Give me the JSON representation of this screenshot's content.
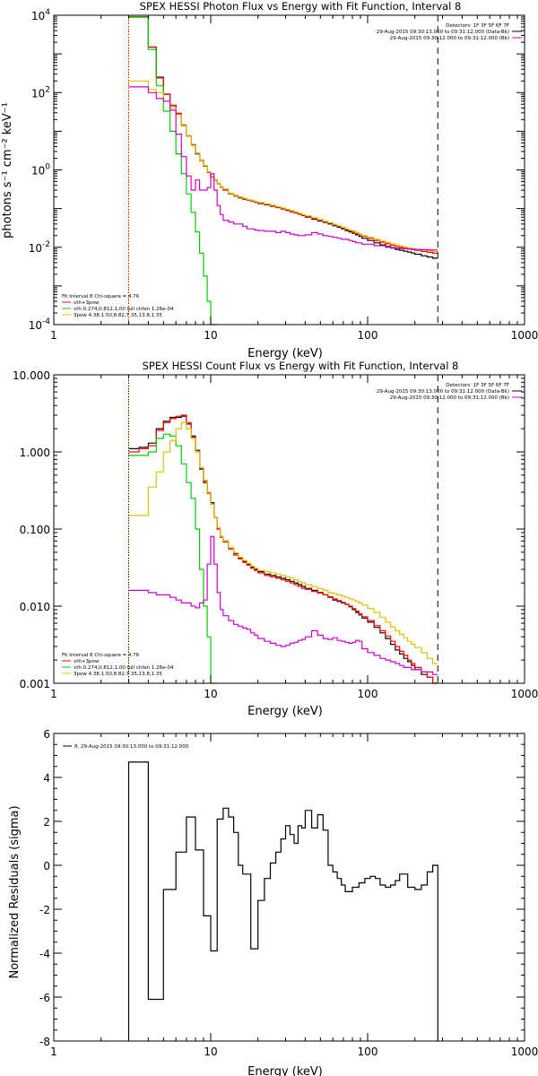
{
  "chart_data": [
    {
      "type": "line",
      "title": "SPEX HESSI Photon Flux vs Energy with Fit Function, Interval 8",
      "xlabel": "Energy (keV)",
      "ylabel": "photons s⁻¹ cm⁻² keV⁻¹",
      "xscale": "log",
      "yscale": "log",
      "xlim": [
        1,
        1000
      ],
      "ylim": [
        0.0001,
        10000
      ],
      "xticks": [
        "1",
        "10",
        "100",
        "1000"
      ],
      "yticks": [
        {
          "v": 0.0001,
          "m": "10",
          "e": "-4"
        },
        {
          "v": 0.01,
          "m": "10",
          "e": "-2"
        },
        {
          "v": 1,
          "m": "10",
          "e": "0"
        },
        {
          "v": 100,
          "m": "10",
          "e": "2"
        },
        {
          "v": 10000,
          "m": "10",
          "e": "4"
        }
      ],
      "edges": [
        3,
        3.5,
        4,
        4.5,
        5,
        5.5,
        6,
        6.5,
        7,
        7.5,
        8,
        8.5,
        9,
        9.5,
        10,
        10.5,
        11,
        11.5,
        12,
        13,
        14,
        15,
        16,
        17,
        18,
        19,
        20,
        22,
        24,
        26,
        28,
        30,
        32,
        34,
        36,
        38,
        40,
        44,
        48,
        52,
        56,
        60,
        64,
        68,
        72,
        76,
        80,
        84,
        88,
        92,
        100,
        110,
        120,
        130,
        140,
        150,
        160,
        170,
        180,
        190,
        200,
        220,
        240,
        260,
        280
      ],
      "vlines": [
        {
          "x": 3,
          "color": "#d4a017",
          "dash": "2,2"
        },
        {
          "x": 3,
          "color": "#ff0000",
          "dash": "1,2"
        },
        {
          "x": 280,
          "color": "#000000",
          "dash": "7,5"
        }
      ],
      "series": [
        {
          "name": "",
          "color": "#000000",
          "values": [
            9000,
            9000,
            1500,
            250,
            90,
            46,
            28,
            14,
            7.5,
            4.4,
            2.6,
            1.8,
            1.25,
            0.88,
            0.66,
            0.55,
            0.44,
            0.36,
            0.31,
            0.24,
            0.21,
            0.19,
            0.175,
            0.165,
            0.155,
            0.145,
            0.135,
            0.125,
            0.115,
            0.106,
            0.098,
            0.09,
            0.083,
            0.077,
            0.071,
            0.066,
            0.06,
            0.053,
            0.048,
            0.044,
            0.04,
            0.036,
            0.033,
            0.03,
            0.027,
            0.025,
            0.023,
            0.021,
            0.019,
            0.017,
            0.015,
            0.013,
            0.0115,
            0.0104,
            0.0095,
            0.0088,
            0.0083,
            0.0079,
            0.0075,
            0.0071,
            0.0066,
            0.006,
            0.0056,
            0.0052
          ]
        },
        {
          "name": "vth+3pow",
          "color": "#ff0000",
          "values": [
            9200,
            9200,
            1500,
            240,
            92,
            47,
            29,
            14.5,
            7.6,
            4.5,
            2.7,
            1.75,
            1.28,
            0.86,
            0.65,
            0.54,
            0.45,
            0.37,
            0.3,
            0.245,
            0.215,
            0.195,
            0.18,
            0.168,
            0.157,
            0.148,
            0.139,
            0.128,
            0.118,
            0.108,
            0.1,
            0.092,
            0.085,
            0.078,
            0.072,
            0.067,
            0.062,
            0.055,
            0.05,
            0.046,
            0.042,
            0.038,
            0.035,
            0.032,
            0.029,
            0.027,
            0.025,
            0.023,
            0.021,
            0.019,
            0.017,
            0.015,
            0.0135,
            0.0123,
            0.0113,
            0.0105,
            0.0099,
            0.0094,
            0.009,
            0.0087,
            0.0083,
            0.0078,
            0.0074,
            0.007
          ]
        },
        {
          "name": "vth 0.274,0.812,1.00 full chfan 1.26e-04",
          "color": "#00cc00",
          "values": [
            9000,
            9000,
            1300,
            150,
            33,
            10,
            2.6,
            0.8,
            0.24,
            0.08,
            0.025,
            0.007,
            0.0018,
            0.0004,
            0.0001,
            3e-05
          ]
        },
        {
          "name": "3pow 4.38,1.50,8.82,7.35,13.8,1.35",
          "color": "#e0c000",
          "values": [
            200,
            200,
            120,
            100,
            60,
            40,
            27,
            14,
            7.4,
            4.3,
            2.7,
            1.8,
            1.3,
            0.9,
            0.67,
            0.55,
            0.45,
            0.37,
            0.32,
            0.25,
            0.22,
            0.2,
            0.185,
            0.172,
            0.162,
            0.152,
            0.143,
            0.132,
            0.122,
            0.112,
            0.104,
            0.096,
            0.089,
            0.082,
            0.076,
            0.07,
            0.065,
            0.058,
            0.052,
            0.047,
            0.043,
            0.039,
            0.036,
            0.033,
            0.03,
            0.028,
            0.026,
            0.024,
            0.022,
            0.02,
            0.018,
            0.016,
            0.0145,
            0.0133,
            0.0123,
            0.0114,
            0.0107,
            0.0101,
            0.0096,
            0.0092,
            0.0088,
            0.0084,
            0.0081,
            0.0078
          ]
        },
        {
          "name": "",
          "color": "#cc00cc",
          "values": [
            140,
            140,
            100,
            70,
            60,
            35,
            8.4,
            2.2,
            0.7,
            0.3,
            0.55,
            0.3,
            0.3,
            0.35,
            0.8,
            0.3,
            0.12,
            0.07,
            0.05,
            0.045,
            0.04,
            0.04,
            0.035,
            0.03,
            0.03,
            0.028,
            0.027,
            0.026,
            0.026,
            0.024,
            0.026,
            0.024,
            0.022,
            0.021,
            0.02,
            0.02,
            0.021,
            0.024,
            0.022,
            0.02,
            0.019,
            0.018,
            0.017,
            0.016,
            0.016,
            0.015,
            0.014,
            0.013,
            0.013,
            0.012,
            0.012,
            0.011,
            0.011,
            0.01,
            0.0098,
            0.0095,
            0.0093,
            0.0091,
            0.009,
            0.0089,
            0.0088,
            0.0087,
            0.0086,
            0.0085
          ]
        }
      ],
      "legend_tr": {
        "lines": [
          {
            "text": "Detectors: 1F 3F 5F 6F 7F",
            "color": null
          },
          {
            "text": "29-Aug-2015 09:30:13.000 to 09:31:12.000 (Data-Bk)",
            "color": "#000000"
          },
          {
            "text": "29-Aug-2015 09:30:12.000 to 09:31:12.000 (Bk)",
            "color": "#cc00cc"
          }
        ]
      },
      "legend_bl": {
        "lines": [
          {
            "text": "Fit Interval 8   Chi-square = 4.76",
            "color": null
          },
          {
            "text": "vth+3pow",
            "color": "#ff0000"
          },
          {
            "text": "vth 0.274,0.812,1.00  full chfan 1.26e-04",
            "color": "#00cc00"
          },
          {
            "text": "3pow 4.38,1.50,8.82,7.35,13.8,1.35",
            "color": "#e0c000"
          }
        ]
      }
    },
    {
      "type": "line",
      "title": "SPEX HESSI Count Flux vs Energy with Fit Function, Interval 8",
      "xlabel": "Energy (keV)",
      "ylabel": "",
      "xscale": "log",
      "yscale": "log",
      "xlim": [
        1,
        1000
      ],
      "ylim": [
        0.001,
        10
      ],
      "xticks": [
        "1",
        "10",
        "100",
        "1000"
      ],
      "yticks": [
        {
          "v": 0.001,
          "t": "0.001"
        },
        {
          "v": 0.01,
          "t": "0.010"
        },
        {
          "v": 0.1,
          "t": "0.100"
        },
        {
          "v": 1,
          "t": "1.000"
        },
        {
          "v": 10,
          "t": "10.000"
        }
      ],
      "edges": [
        3,
        3.5,
        4,
        4.5,
        5,
        5.5,
        6,
        6.5,
        7,
        7.5,
        8,
        8.5,
        9,
        9.5,
        10,
        10.5,
        11,
        11.5,
        12,
        13,
        14,
        15,
        16,
        17,
        18,
        19,
        20,
        22,
        24,
        26,
        28,
        30,
        32,
        34,
        36,
        38,
        40,
        44,
        48,
        52,
        56,
        60,
        64,
        68,
        72,
        76,
        80,
        84,
        88,
        92,
        100,
        110,
        120,
        130,
        140,
        150,
        160,
        170,
        180,
        190,
        200,
        220,
        240,
        260,
        280
      ],
      "vlines": [
        {
          "x": 3,
          "color": "#d4a017",
          "dash": "2,2"
        },
        {
          "x": 3,
          "color": "#000000",
          "dash": "1,2"
        },
        {
          "x": 280,
          "color": "#000000",
          "dash": "7,5"
        }
      ],
      "series": [
        {
          "name": "",
          "color": "#000000",
          "values": [
            1.1,
            1.15,
            1.3,
            2.0,
            2.5,
            2.8,
            2.8,
            2.9,
            2.3,
            1.6,
            1.05,
            0.6,
            0.4,
            0.3,
            0.22,
            0.14,
            0.1,
            0.08,
            0.07,
            0.056,
            0.048,
            0.042,
            0.038,
            0.035,
            0.032,
            0.03,
            0.028,
            0.026,
            0.025,
            0.024,
            0.023,
            0.022,
            0.021,
            0.02,
            0.019,
            0.018,
            0.017,
            0.016,
            0.015,
            0.014,
            0.013,
            0.012,
            0.0115,
            0.011,
            0.0105,
            0.0098,
            0.009,
            0.0083,
            0.0077,
            0.007,
            0.0062,
            0.0053,
            0.0045,
            0.0038,
            0.0032,
            0.0027,
            0.0024,
            0.0021,
            0.0019,
            0.0017,
            0.0015,
            0.0013,
            0.0012,
            0.001
          ]
        },
        {
          "name": "vth+3pow",
          "color": "#ff0000",
          "values": [
            1.0,
            1.1,
            1.2,
            1.9,
            2.4,
            2.7,
            2.9,
            3.0,
            2.4,
            1.55,
            1.0,
            0.62,
            0.42,
            0.29,
            0.21,
            0.14,
            0.1,
            0.078,
            0.068,
            0.055,
            0.046,
            0.041,
            0.037,
            0.034,
            0.031,
            0.029,
            0.027,
            0.025,
            0.024,
            0.023,
            0.022,
            0.021,
            0.02,
            0.019,
            0.018,
            0.017,
            0.0165,
            0.0155,
            0.0148,
            0.014,
            0.0132,
            0.0124,
            0.0118,
            0.0112,
            0.0106,
            0.01,
            0.0093,
            0.0086,
            0.008,
            0.0073,
            0.0065,
            0.0056,
            0.0048,
            0.0041,
            0.0035,
            0.003,
            0.0026,
            0.0023,
            0.002,
            0.0018,
            0.0016,
            0.0014,
            0.0012,
            0.001
          ]
        },
        {
          "name": "vth 0.274,0.812,1.00 full chfan 1.26e-04",
          "color": "#00cc00",
          "values": [
            0.9,
            0.9,
            1.0,
            1.5,
            1.7,
            1.6,
            1.2,
            0.7,
            0.4,
            0.25,
            0.1,
            0.03,
            0.01,
            0.004,
            0.0009,
            0.0003
          ]
        },
        {
          "name": "3pow 4.38,1.50,8.82,7.35,13.8,1.35",
          "color": "#e0c000",
          "values": [
            0.15,
            0.15,
            0.35,
            0.55,
            1.0,
            1.4,
            2.0,
            2.4,
            2.0,
            1.5,
            1.0,
            0.62,
            0.43,
            0.3,
            0.21,
            0.14,
            0.105,
            0.08,
            0.07,
            0.057,
            0.049,
            0.043,
            0.039,
            0.036,
            0.033,
            0.031,
            0.029,
            0.028,
            0.027,
            0.026,
            0.025,
            0.024,
            0.023,
            0.022,
            0.021,
            0.02,
            0.019,
            0.018,
            0.017,
            0.016,
            0.015,
            0.0145,
            0.014,
            0.0135,
            0.013,
            0.0125,
            0.012,
            0.0115,
            0.011,
            0.0103,
            0.0093,
            0.0083,
            0.0072,
            0.0062,
            0.0054,
            0.0048,
            0.0043,
            0.0039,
            0.0035,
            0.0032,
            0.0029,
            0.0025,
            0.0021,
            0.0018
          ]
        },
        {
          "name": "",
          "color": "#cc00cc",
          "values": [
            0.016,
            0.016,
            0.015,
            0.014,
            0.014,
            0.013,
            0.012,
            0.011,
            0.011,
            0.01,
            0.0095,
            0.011,
            0.012,
            0.035,
            0.08,
            0.035,
            0.015,
            0.009,
            0.0075,
            0.0065,
            0.0058,
            0.0055,
            0.0052,
            0.005,
            0.0045,
            0.0042,
            0.0038,
            0.0035,
            0.0033,
            0.0031,
            0.003,
            0.0031,
            0.0033,
            0.0034,
            0.0036,
            0.0037,
            0.004,
            0.0048,
            0.0042,
            0.0038,
            0.0037,
            0.0039,
            0.0036,
            0.0035,
            0.0034,
            0.0033,
            0.0034,
            0.0036,
            0.0035,
            0.0028,
            0.0025,
            0.0023,
            0.0021,
            0.002,
            0.0019,
            0.0018,
            0.0017,
            0.0016,
            0.0016,
            0.0015,
            0.0015,
            0.0014,
            0.0014,
            0.0013
          ]
        }
      ],
      "legend_tr": {
        "lines": [
          {
            "text": "Detectors: 1F 3F 5F 6F 7F",
            "color": null
          },
          {
            "text": "29-Aug-2015 09:30:13.000 to 09:31:12.000 (Data-Bk)",
            "color": "#000000"
          },
          {
            "text": "29-Aug-2015 09:30:12.000 to 09:31:12.000 (Bk)",
            "color": "#cc00cc"
          }
        ]
      },
      "legend_bl": {
        "lines": [
          {
            "text": "Fit Interval 8   Chi-square = 4.76",
            "color": null
          },
          {
            "text": "vth+3pow",
            "color": "#ff0000"
          },
          {
            "text": "vth 0.274,0.812,1.00  full chfan 1.26e-04",
            "color": "#00cc00"
          },
          {
            "text": "3pow 4.38,1.50,8.82,7.35,13.8,1.35",
            "color": "#e0c000"
          }
        ]
      }
    },
    {
      "type": "line",
      "title": "",
      "xlabel": "Energy (keV)",
      "ylabel": "Normalized Residuals (sigma)",
      "xscale": "log",
      "yscale": "linear",
      "xlim": [
        1,
        1000
      ],
      "ylim": [
        -8,
        6
      ],
      "xticks": [
        "1",
        "10",
        "100",
        "1000"
      ],
      "yticks": [
        {
          "v": -8,
          "t": "-8"
        },
        {
          "v": -6,
          "t": "-6"
        },
        {
          "v": -4,
          "t": "-4"
        },
        {
          "v": -2,
          "t": "-2"
        },
        {
          "v": 0,
          "t": "0"
        },
        {
          "v": 2,
          "t": "2"
        },
        {
          "v": 4,
          "t": "4"
        },
        {
          "v": 6,
          "t": "6"
        }
      ],
      "edges": [
        3,
        4,
        5,
        6,
        7,
        8,
        9,
        10,
        11,
        12,
        13,
        14,
        15,
        16,
        18,
        20,
        22,
        24,
        26,
        28,
        30,
        32,
        34,
        36,
        38,
        40,
        44,
        48,
        52,
        56,
        60,
        64,
        68,
        72,
        80,
        88,
        96,
        104,
        112,
        120,
        130,
        140,
        150,
        160,
        180,
        200,
        220,
        240,
        260,
        280
      ],
      "vlines": [],
      "series": [
        {
          "name": "",
          "color": "#000000",
          "drop_ends": true,
          "values": [
            4.7,
            -6.1,
            -1.1,
            0.6,
            2.2,
            0.7,
            -2.3,
            -3.9,
            2.1,
            2.6,
            2.2,
            1.5,
            0.0,
            -0.4,
            -3.8,
            -1.6,
            -0.6,
            0.1,
            0.6,
            1.2,
            1.8,
            1.4,
            1.0,
            1.8,
            1.7,
            2.5,
            1.7,
            2.3,
            1.6,
            0.0,
            -0.3,
            -0.6,
            -0.9,
            -1.2,
            -1.0,
            -0.8,
            -0.6,
            -0.5,
            -0.6,
            -0.9,
            -1.0,
            -0.9,
            -0.7,
            -0.4,
            -1.0,
            -1.1,
            -0.9,
            -0.3,
            0.0
          ]
        }
      ],
      "legend_tr": null,
      "legend_bl": null,
      "legend_tl": {
        "lines": [
          {
            "text": "8, 29-Aug-2015 09:30:13.000 to 09:31:12.000",
            "color": "#000000"
          }
        ]
      }
    }
  ]
}
